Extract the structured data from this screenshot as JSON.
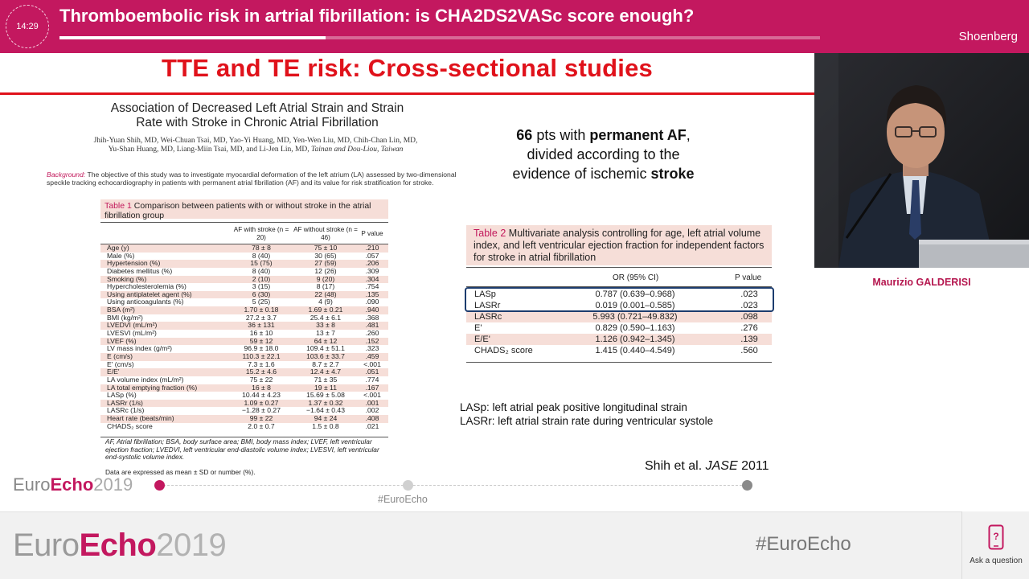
{
  "header": {
    "time": "14:29",
    "title": "Thromboembolic risk in artrial fibrillation: is CHA2DS2VASc score enough?",
    "room": "Shoenberg",
    "progress_fraction": 0.35
  },
  "slide": {
    "title": "TTE and TE risk: Cross-sectional studies",
    "paper": {
      "title_line1": "Association of Decreased Left Atrial Strain and Strain",
      "title_line2": "Rate with Stroke in Chronic Atrial Fibrillation",
      "authors_line1": "Jhih-Yuan Shih, MD, Wei-Chuan Tsai, MD, Yao-Yi Huang, MD, Yen-Wen Liu, MD, Chih-Chan Lin, MD,",
      "authors_line2": "Yu-Shan Huang, MD, Liang-Miin Tsai, MD, and Li-Jen Lin, MD,",
      "authors_location": "Tainan and Dou-Liou, Taiwan",
      "background_label": "Background:",
      "background_text": "The objective of this study was to investigate myocardial deformation of the left atrium (LA) assessed by two-dimensional speckle tracking echocardiography in patients with permanent atrial fibrillation (AF) and its value for risk stratification for stroke."
    },
    "table1": {
      "number": "Table 1",
      "caption": "Comparison between patients with or without stroke in the atrial fibrillation group",
      "col1": "AF with stroke (n = 20)",
      "col2": "AF without stroke (n = 46)",
      "col3": "P value",
      "rows": [
        {
          "label": "Age (y)",
          "a": "78 ± 8",
          "b": "75 ± 10",
          "p": ".210"
        },
        {
          "label": "Male (%)",
          "a": "8 (40)",
          "b": "30 (65)",
          "p": ".057"
        },
        {
          "label": "Hypertension (%)",
          "a": "15 (75)",
          "b": "27 (59)",
          "p": ".206"
        },
        {
          "label": "Diabetes mellitus (%)",
          "a": "8 (40)",
          "b": "12 (26)",
          "p": ".309"
        },
        {
          "label": "Smoking (%)",
          "a": "2 (10)",
          "b": "9 (20)",
          "p": ".304"
        },
        {
          "label": "Hypercholesterolemia (%)",
          "a": "3 (15)",
          "b": "8 (17)",
          "p": ".754"
        },
        {
          "label": "Using antiplatelet agent (%)",
          "a": "6 (30)",
          "b": "22 (48)",
          "p": ".135"
        },
        {
          "label": "Using anticoagulants (%)",
          "a": "5 (25)",
          "b": "4 (9)",
          "p": ".090"
        },
        {
          "label": "BSA (m²)",
          "a": "1.70 ± 0.18",
          "b": "1.69 ± 0.21",
          "p": ".940"
        },
        {
          "label": "BMI (kg/m²)",
          "a": "27.2 ± 3.7",
          "b": "25.4 ± 6.1",
          "p": ".368"
        },
        {
          "label": "LVEDVI (mL/m²)",
          "a": "36 ± 131",
          "b": "33 ± 8",
          "p": ".481"
        },
        {
          "label": "LVESVI (mL/m²)",
          "a": "16 ± 10",
          "b": "13 ± 7",
          "p": ".260"
        },
        {
          "label": "LVEF (%)",
          "a": "59 ± 12",
          "b": "64 ± 12",
          "p": ".152"
        },
        {
          "label": "LV mass index (g/m²)",
          "a": "96.9 ± 18.0",
          "b": "109.4 ± 51.1",
          "p": ".323"
        },
        {
          "label": "E (cm/s)",
          "a": "110.3 ± 22.1",
          "b": "103.6 ± 33.7",
          "p": ".459"
        },
        {
          "label": "E' (cm/s)",
          "a": "7.3 ± 1.6",
          "b": "8.7 ± 2.7",
          "p": "<.001"
        },
        {
          "label": "E/E'",
          "a": "15.2 ± 4.6",
          "b": "12.4 ± 4.7",
          "p": ".051"
        },
        {
          "label": "LA volume index (mL/m²)",
          "a": "75 ± 22",
          "b": "71 ± 35",
          "p": ".774"
        },
        {
          "label": "LA total emptying fraction (%)",
          "a": "16 ± 8",
          "b": "19 ± 11",
          "p": ".167"
        },
        {
          "label": "LASp (%)",
          "a": "10.44 ± 4.23",
          "b": "15.69 ± 5.08",
          "p": "<.001"
        },
        {
          "label": "LASRr (1/s)",
          "a": "1.09 ± 0.27",
          "b": "1.37 ± 0.32",
          "p": ".001"
        },
        {
          "label": "LASRc (1/s)",
          "a": "−1.28 ± 0.27",
          "b": "−1.64 ± 0.43",
          "p": ".002"
        },
        {
          "label": "Heart rate (beats/min)",
          "a": "99 ± 22",
          "b": "94 ± 24",
          "p": ".408"
        },
        {
          "label": "CHADS₂ score",
          "a": "2.0 ± 0.7",
          "b": "1.5 ± 0.8",
          "p": ".021"
        }
      ],
      "footnote": "AF, Atrial fibrillation; BSA, body surface area; BMI, body mass index; LVEF, left ventricular ejection fraction; LVEDVI, left ventricular end-diastolic volume index; LVESVI, left ventricular end-systolic volume index.",
      "footnote2": "Data are expressed as mean ± SD or number (%)."
    },
    "summary": {
      "count": "66",
      "text1": " pts with ",
      "bold1": "permanent AF",
      "text2": ",",
      "line2": "divided according to the",
      "line3": "evidence of ischemic ",
      "bold2": "stroke"
    },
    "table2": {
      "number": "Table 2",
      "caption": "Multivariate analysis controlling for age, left atrial volume index, and left ventricular ejection fraction for independent factors for stroke in atrial fibrillation",
      "col1": "OR (95% CI)",
      "col2": "P value",
      "rows": [
        {
          "label": "LASp",
          "or": "0.787 (0.639–0.968)",
          "p": ".023"
        },
        {
          "label": "LASRr",
          "or": "0.019 (0.001–0.585)",
          "p": ".023"
        },
        {
          "label": "LASRc",
          "or": "5.993 (0.721–49.832)",
          "p": ".098"
        },
        {
          "label": "E'",
          "or": "0.829 (0.590–1.163)",
          "p": ".276"
        },
        {
          "label": "E/E'",
          "or": "1.126 (0.942–1.345)",
          "p": ".139"
        },
        {
          "label": "CHADS₂ score",
          "or": "1.415 (0.440–4.549)",
          "p": ".560"
        }
      ]
    },
    "abbrev1": "LASp: left atrial peak positive longitudinal strain",
    "abbrev2": "LASRr: left atrial  strain rate  during ventricular systole",
    "citation_authors": "Shih et al. ",
    "citation_journal": "JASE",
    "citation_year": " 2011",
    "footer_logo_euro": "Euro",
    "footer_logo_echo": "Echo",
    "footer_logo_year": "2019",
    "footer_hashtag": "#EuroEcho"
  },
  "speaker": {
    "name": "Maurizio GALDERISI"
  },
  "banner": {
    "logo_euro": "Euro",
    "logo_echo": "Echo",
    "logo_year": "2019",
    "hashtag": "#EuroEcho",
    "ask_label": "Ask a question"
  },
  "colors": {
    "brand": "#c3185f",
    "slide_title": "#e0121b",
    "table_tint": "#f6ded8",
    "highlight_box": "#1c3c6e"
  }
}
